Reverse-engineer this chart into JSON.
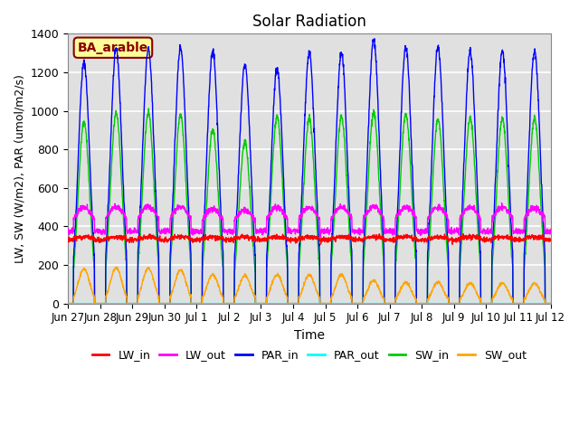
{
  "title": "Solar Radiation",
  "xlabel": "Time",
  "ylabel": "LW, SW (W/m2), PAR (umol/m2/s)",
  "ylim": [
    0,
    1400
  ],
  "annotation_text": "BA_arable",
  "annotation_color": "#8B0000",
  "annotation_bg": "#FFFF99",
  "tick_labels": [
    "Jun 27",
    "Jun 28",
    "Jun 29",
    "Jun 30",
    "Jul 1",
    "Jul 2",
    "Jul 3",
    "Jul 4",
    "Jul 5",
    "Jul 6",
    "Jul 7",
    "Jul 8",
    "Jul 9",
    "Jul 10",
    "Jul 11",
    "Jul 12"
  ],
  "series": {
    "LW_in": {
      "color": "#FF0000",
      "lw": 1.0
    },
    "LW_out": {
      "color": "#FF00FF",
      "lw": 1.0
    },
    "PAR_in": {
      "color": "#0000FF",
      "lw": 1.0
    },
    "PAR_out": {
      "color": "#00FFFF",
      "lw": 1.0
    },
    "SW_in": {
      "color": "#00CC00",
      "lw": 1.0
    },
    "SW_out": {
      "color": "#FFA500",
      "lw": 1.0
    }
  },
  "background_color": "#FFFFFF",
  "plot_bg": "#E0E0E0",
  "grid_color": "#FFFFFF",
  "n_days": 15,
  "pts_per_day": 144,
  "day_peaks_PAR_in": [
    1250,
    1320,
    1320,
    1330,
    1310,
    1240,
    1220,
    1300,
    1300,
    1370,
    1330,
    1330,
    1310,
    1310,
    1310
  ],
  "day_peaks_SW_in": [
    940,
    990,
    990,
    980,
    900,
    840,
    970,
    960,
    970,
    990,
    980,
    960,
    960,
    960,
    960
  ],
  "day_peaks_SW_out": [
    180,
    185,
    183,
    175,
    150,
    145,
    150,
    150,
    148,
    120,
    110,
    110,
    105,
    105,
    105
  ],
  "lw_in_base": 330,
  "lw_out_base": 375,
  "yticks": [
    0,
    200,
    400,
    600,
    800,
    1000,
    1200,
    1400
  ]
}
